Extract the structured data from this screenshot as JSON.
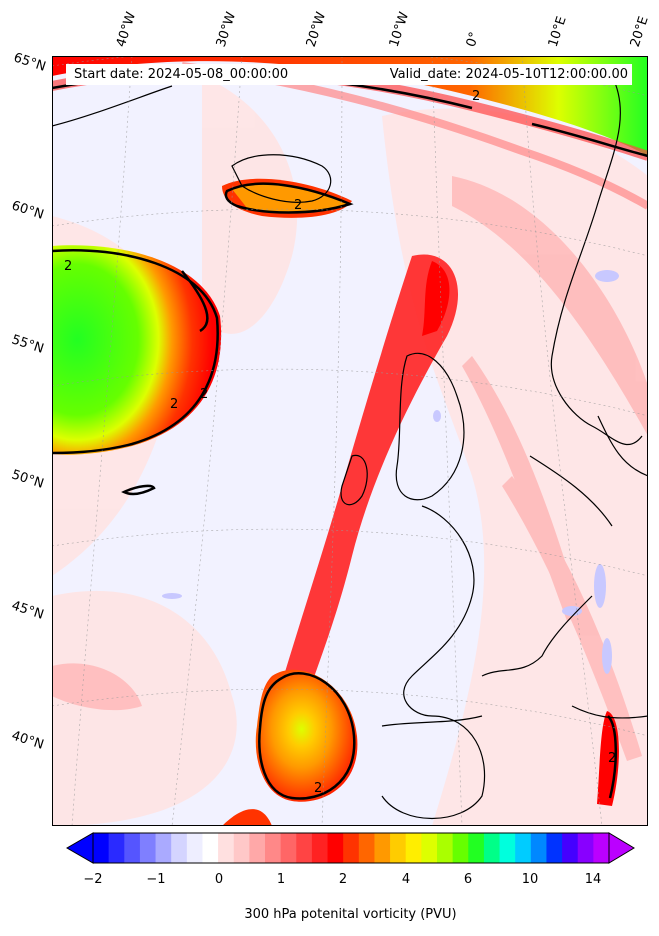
{
  "map": {
    "start_date": "Start date: 2024-05-08_00:00:00",
    "valid_date": "Valid_date: 2024-05-10T12:00:00.00",
    "latitude_labels": [
      "65°N",
      "60°N",
      "55°N",
      "50°N",
      "45°N",
      "40°N"
    ],
    "longitude_labels": [
      "40°W",
      "30°W",
      "20°W",
      "10°W",
      "0°",
      "10°E",
      "20°E"
    ],
    "contour_label": "2",
    "contour_level_pvu": 2
  },
  "colorbar": {
    "label": "300 hPa potenital vorticity (PVU)",
    "tick_labels": [
      "−2",
      "−1",
      "0",
      "1",
      "2",
      "4",
      "6",
      "10",
      "14"
    ],
    "colors": [
      "#0000ff",
      "#2a2aff",
      "#5555ff",
      "#7f7fff",
      "#aaaaff",
      "#d4d4ff",
      "#eeeeff",
      "#ffffff",
      "#ffe0e0",
      "#ffc8c8",
      "#ffa8a8",
      "#ff8888",
      "#ff6666",
      "#ff4444",
      "#ff2222",
      "#ff0000",
      "#ff3300",
      "#ff6600",
      "#ff9900",
      "#ffcc00",
      "#ffee00",
      "#ddff00",
      "#aaff00",
      "#66ff00",
      "#22ff22",
      "#00ff88",
      "#00ffdd",
      "#00ccff",
      "#0088ff",
      "#0033ff",
      "#4400ff",
      "#8800ff",
      "#bb00ff"
    ],
    "under_color": "#0000ff",
    "over_color": "#bb00ff"
  }
}
